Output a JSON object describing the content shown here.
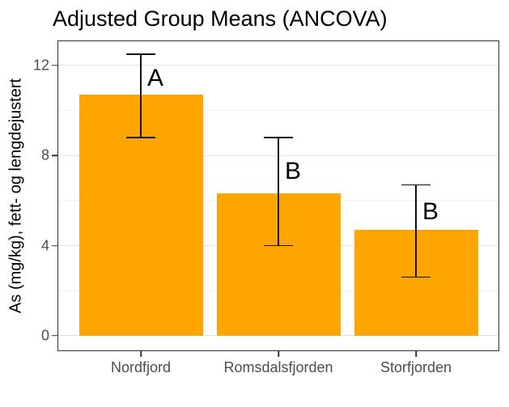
{
  "chart_data": {
    "type": "bar",
    "title": "Adjusted Group Means (ANCOVA)",
    "ylabel": "As (mg/kg), fett- og lengdejustert",
    "xlabel": "",
    "categories": [
      "Nordfjord",
      "Romsdalsfjorden",
      "Storfjorden"
    ],
    "values": [
      10.7,
      6.3,
      4.7
    ],
    "error_bars": [
      {
        "low": 8.8,
        "high": 12.5
      },
      {
        "low": 4.0,
        "high": 8.8
      },
      {
        "low": 2.6,
        "high": 6.7
      }
    ],
    "annotations": [
      {
        "label": "A",
        "y": 11.4
      },
      {
        "label": "B",
        "y": 7.3
      },
      {
        "label": "B",
        "y": 5.5
      }
    ],
    "yticks_major": [
      0,
      4,
      8,
      12
    ],
    "yticks_minor": [
      2,
      6,
      10
    ],
    "ylim": [
      -0.65,
      13.07
    ],
    "grid": true,
    "legend": false,
    "bar_color": "#FFA500",
    "error_color": "#111111",
    "axis_text_color": "#4d4d4d",
    "panel_border_color": "#333333"
  }
}
